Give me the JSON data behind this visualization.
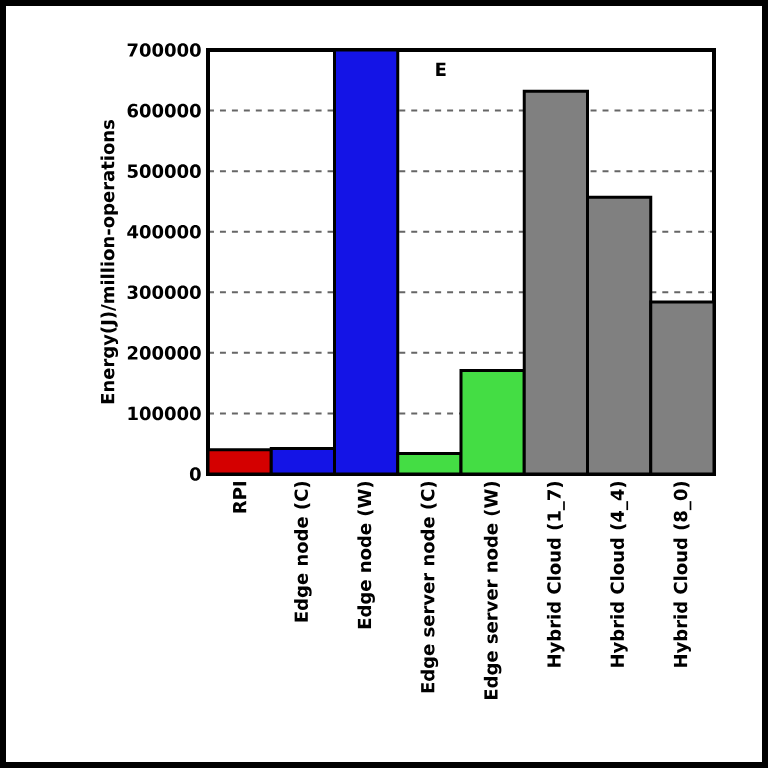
{
  "chart_data": {
    "type": "bar",
    "ylabel": "Energy(J)/million-operations",
    "categories": [
      "RPI",
      "Edge node (C)",
      "Edge node (W)",
      "Edge server node (C)",
      "Edge server node (W)",
      "Hybrid Cloud (1_7)",
      "Hybrid Cloud (4_4)",
      "Hybrid Cloud (8_0)"
    ],
    "values": [
      40000,
      42000,
      700000,
      34000,
      171000,
      632000,
      457000,
      284000
    ],
    "colors": [
      "#d40000",
      "#1414e6",
      "#1414e6",
      "#44dd44",
      "#44dd44",
      "#808080",
      "#808080",
      "#808080"
    ],
    "ylim": [
      0,
      700000
    ],
    "yticks": [
      0,
      100000,
      200000,
      300000,
      400000,
      500000,
      600000,
      700000
    ],
    "grid": "y",
    "annotations": [
      "E"
    ]
  }
}
